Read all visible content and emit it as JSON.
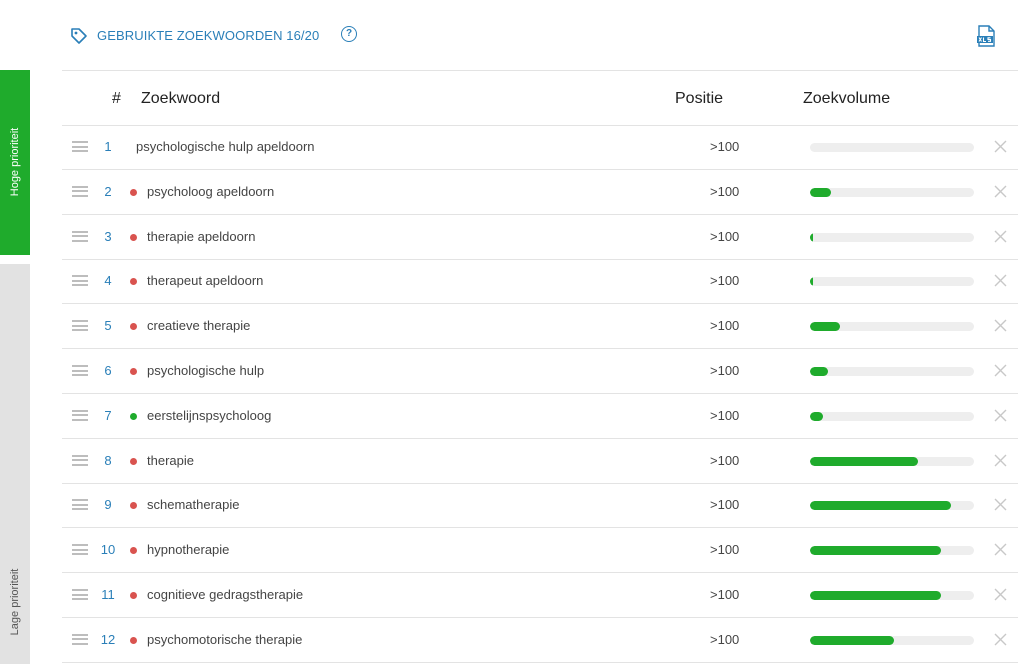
{
  "sidebar": {
    "high_label": "Hoge prioriteit",
    "low_label": "Lage prioriteit"
  },
  "header": {
    "title": "GEBRUIKTE ZOEKWOORDEN 16/20",
    "help_symbol": "?",
    "icons": [
      "tag-icon",
      "help-icon",
      "xls-export-icon"
    ]
  },
  "columns": {
    "num": "#",
    "keyword": "Zoekwoord",
    "position": "Positie",
    "volume": "Zoekvolume"
  },
  "colors": {
    "accent_blue": "#2a7fb8",
    "green": "#1fab2c",
    "red_dot": "#d9534f",
    "green_dot": "#1fab2c",
    "low_priority_bg": "#e2e2e2"
  },
  "rows": [
    {
      "num": "1",
      "keyword": "psychologische hulp apeldoorn",
      "status": "none",
      "position": ">100",
      "volume": 0
    },
    {
      "num": "2",
      "keyword": "psycholoog apeldoorn",
      "status": "red",
      "position": ">100",
      "volume": 0.13
    },
    {
      "num": "3",
      "keyword": "therapie apeldoorn",
      "status": "red",
      "position": ">100",
      "volume": 0.02
    },
    {
      "num": "4",
      "keyword": "therapeut apeldoorn",
      "status": "red",
      "position": ">100",
      "volume": 0.02
    },
    {
      "num": "5",
      "keyword": "creatieve therapie",
      "status": "red",
      "position": ">100",
      "volume": 0.18
    },
    {
      "num": "6",
      "keyword": "psychologische hulp",
      "status": "red",
      "position": ">100",
      "volume": 0.11
    },
    {
      "num": "7",
      "keyword": "eerstelijnspsycholoog",
      "status": "green",
      "position": ">100",
      "volume": 0.08
    },
    {
      "num": "8",
      "keyword": "therapie",
      "status": "red",
      "position": ">100",
      "volume": 0.66
    },
    {
      "num": "9",
      "keyword": "schematherapie",
      "status": "red",
      "position": ">100",
      "volume": 0.86
    },
    {
      "num": "10",
      "keyword": "hypnotherapie",
      "status": "red",
      "position": ">100",
      "volume": 0.8
    },
    {
      "num": "11",
      "keyword": "cognitieve gedragstherapie",
      "status": "red",
      "position": ">100",
      "volume": 0.8
    },
    {
      "num": "12",
      "keyword": "psychomotorische therapie",
      "status": "red",
      "position": ">100",
      "volume": 0.51
    }
  ]
}
